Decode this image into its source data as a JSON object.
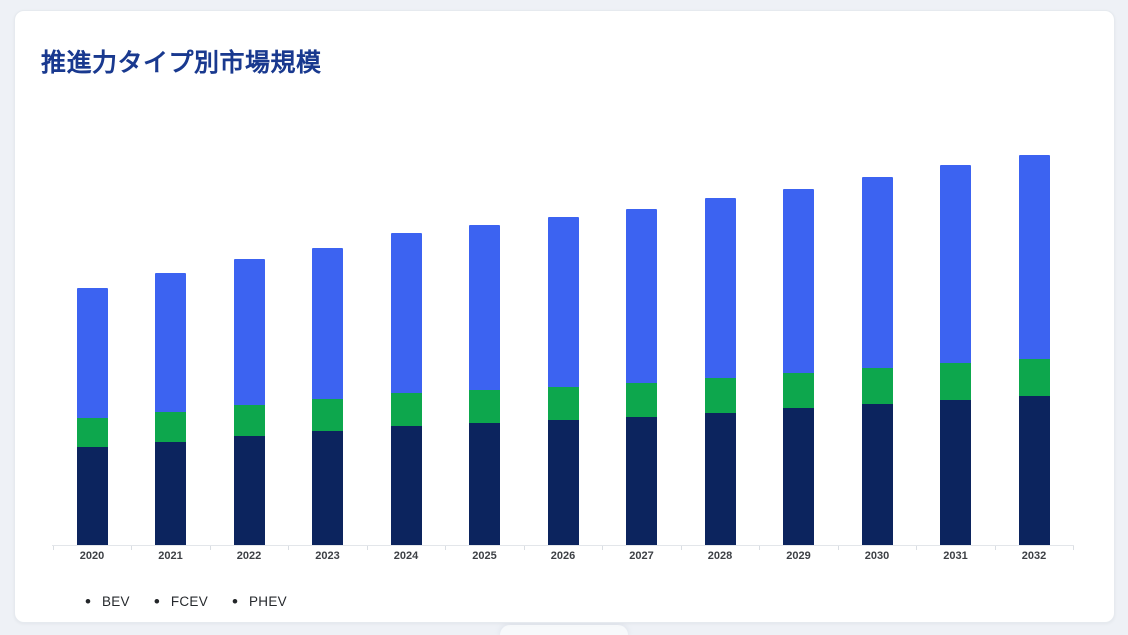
{
  "card": {
    "title": "推進力タイプ別市場規模"
  },
  "chart_data": {
    "type": "bar",
    "stacked": true,
    "title": "推進力タイプ別市場規模",
    "categories": [
      "2020",
      "2021",
      "2022",
      "2023",
      "2024",
      "2025",
      "2026",
      "2027",
      "2028",
      "2029",
      "2030",
      "2031",
      "2032"
    ],
    "series": [
      {
        "name": "BEV",
        "color": "#0c245e",
        "values": [
          98,
          103,
          109,
          114,
          119,
          122,
          125,
          128,
          132,
          137,
          141,
          145,
          149
        ]
      },
      {
        "name": "FCEV",
        "color": "#0da74d",
        "values": [
          29,
          30,
          31,
          32,
          33,
          33,
          33,
          34,
          35,
          35,
          36,
          37,
          37
        ]
      },
      {
        "name": "PHEV",
        "color": "#3c63f1",
        "values": [
          130,
          139,
          146,
          151,
          160,
          165,
          170,
          174,
          180,
          184,
          191,
          198,
          204
        ]
      }
    ],
    "stack_order_bottom_to_top": [
      "BEV",
      "FCEV",
      "PHEV"
    ],
    "value_units": "relative (no y-axis labels shown)",
    "y_axis_visible": false,
    "grid": false,
    "axis_color": "#e3e6ea",
    "legend": {
      "position": "bottom-left",
      "bullet": "•",
      "bullet_color": "#232629",
      "items": [
        "BEV",
        "FCEV",
        "PHEV"
      ]
    },
    "colors": {
      "title": "#19398f",
      "tick_label": "#3d4045",
      "card_background": "#ffffff",
      "page_background": "#eef1f6"
    }
  }
}
